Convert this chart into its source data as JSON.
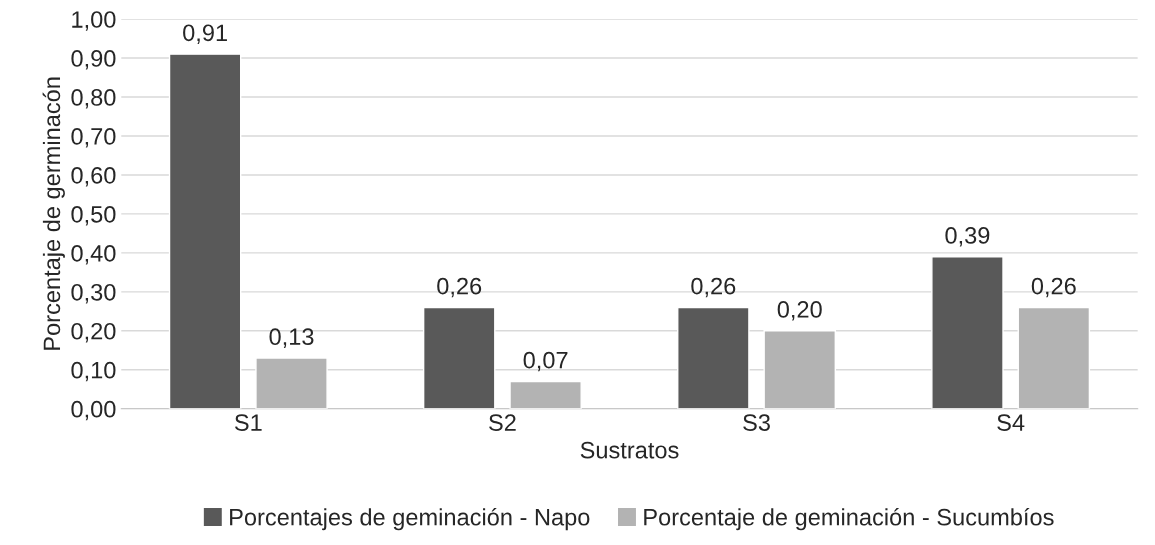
{
  "chart_data": {
    "type": "bar",
    "xlabel": "Sustratos",
    "ylabel": "Porcentaje de germinacón",
    "categories": [
      "S1",
      "S2",
      "S3",
      "S4"
    ],
    "series": [
      {
        "name": "Porcentajes de geminación - Napo",
        "color": "#595959",
        "values": [
          0.91,
          0.26,
          0.26,
          0.39
        ],
        "value_labels": [
          "0,91",
          "0,26",
          "0,26",
          "0,39"
        ]
      },
      {
        "name": "Porcentaje de geminación - Sucumbíos",
        "color": "#b3b3b3",
        "values": [
          0.13,
          0.07,
          0.2,
          0.26
        ],
        "value_labels": [
          "0,13",
          "0,07",
          "0,20",
          "0,26"
        ]
      }
    ],
    "ylim": [
      0,
      1.0
    ],
    "yticks": [
      {
        "value": 0,
        "label": "0,00"
      },
      {
        "value": 0.1,
        "label": "0,10"
      },
      {
        "value": 0.2,
        "label": "0,20"
      },
      {
        "value": 0.3,
        "label": "0,30"
      },
      {
        "value": 0.4,
        "label": "0,40"
      },
      {
        "value": 0.5,
        "label": "0,50"
      },
      {
        "value": 0.6,
        "label": "0,60"
      },
      {
        "value": 0.7,
        "label": "0,70"
      },
      {
        "value": 0.8,
        "label": "0,80"
      },
      {
        "value": 0.9,
        "label": "0,90"
      },
      {
        "value": 1.0,
        "label": "1,00"
      }
    ],
    "grid": "y",
    "legend": "bottom"
  }
}
